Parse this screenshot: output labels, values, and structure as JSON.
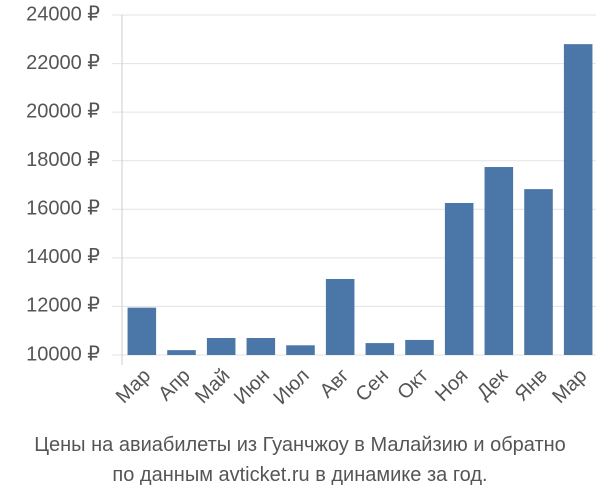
{
  "chart_data": {
    "type": "bar",
    "title_lines": [
      "Цены на авиабилеты из Гуанчжоу в Малайзию и обратно",
      "по данным avticket.ru в динамике за год."
    ],
    "categories": [
      "Мар",
      "Апр",
      "Май",
      "Июн",
      "Июл",
      "Авг",
      "Сен",
      "Окт",
      "Ноя",
      "Дек",
      "Янв",
      "Мар"
    ],
    "values": [
      11950,
      10200,
      10700,
      10700,
      10400,
      13130,
      10490,
      10620,
      16260,
      17740,
      16830,
      22800
    ],
    "color": "#4a76a8",
    "ylim": [
      10000,
      24000
    ],
    "yticks": [
      {
        "value": 10000,
        "label": "10000 ₽"
      },
      {
        "value": 12000,
        "label": "12000 ₽"
      },
      {
        "value": 14000,
        "label": "14000 ₽"
      },
      {
        "value": 16000,
        "label": "16000 ₽"
      },
      {
        "value": 18000,
        "label": "18000 ₽"
      },
      {
        "value": 20000,
        "label": "20000 ₽"
      },
      {
        "value": 22000,
        "label": "22000 ₽"
      },
      {
        "value": 24000,
        "label": "24000 ₽"
      }
    ],
    "grid": true
  }
}
